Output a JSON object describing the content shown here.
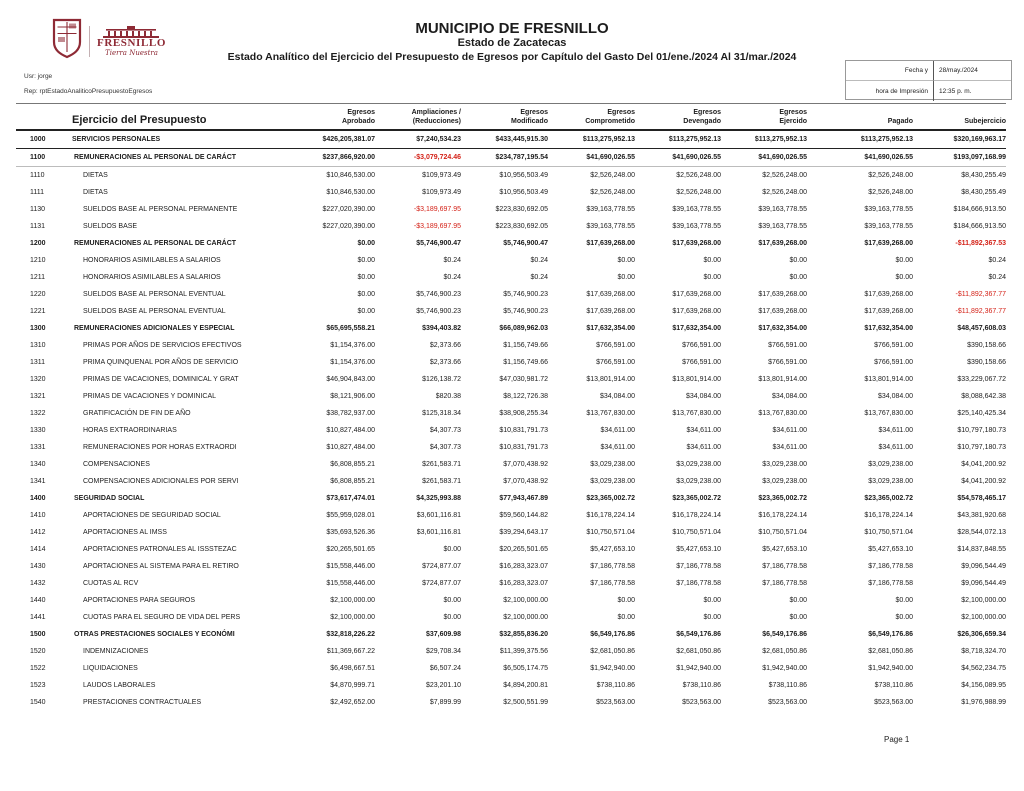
{
  "header": {
    "municipality": "MUNICIPIO DE FRESNILLO",
    "state": "Estado de Zacatecas",
    "report_title": "Estado Analítico del Ejercicio del Presupuesto de Egresos por Capítulo del Gasto Del 01/ene./2024 Al 31/mar./2024",
    "user_label": "Usr: jorge",
    "report_label": "Rep: rptEstadoAnaliticoPresupuestoEgresos",
    "date_label": "Fecha y",
    "time_label": "hora de Impresión",
    "date_value": "28/may./2024",
    "time_value": "12:35 p. m.",
    "logo": {
      "name": "FRESNILLO",
      "slogan": "Tierra Nuestra"
    }
  },
  "colors": {
    "accent_maroon": "#8e2a35",
    "negative_red": "#d42218"
  },
  "table": {
    "title": "Ejercicio del Presupuesto",
    "columns": [
      {
        "id": "aprobado",
        "lines": [
          "Egresos",
          "Aprobado"
        ]
      },
      {
        "id": "ampliaciones",
        "lines": [
          "Ampliaciones /",
          "(Reducciones)"
        ]
      },
      {
        "id": "modificado",
        "lines": [
          "Egresos",
          "Modificado"
        ]
      },
      {
        "id": "comprometido",
        "lines": [
          "Egresos",
          "Comprometido"
        ]
      },
      {
        "id": "devengado",
        "lines": [
          "Egresos",
          "Devengado"
        ]
      },
      {
        "id": "ejercido",
        "lines": [
          "Egresos",
          "Ejercido"
        ]
      },
      {
        "id": "pagado",
        "lines": [
          "Pagado"
        ]
      },
      {
        "id": "subejercicio",
        "lines": [
          "Subejercicio"
        ]
      }
    ],
    "rows": [
      {
        "code": "1000",
        "label": "SERVICIOS PERSONALES",
        "level": 0,
        "bold": true,
        "sep": "dark",
        "values": [
          "$426,205,381.07",
          "$7,240,534.23",
          "$433,445,915.30",
          "$113,275,952.13",
          "$113,275,952.13",
          "$113,275,952.13",
          "$113,275,952.13",
          "$320,169,963.17"
        ]
      },
      {
        "code": "1100",
        "label": "REMUNERACIONES AL PERSONAL DE CARÁCT",
        "level": 1,
        "bold": true,
        "sep": "light",
        "values": [
          "$237,866,920.00",
          "-$3,079,724.46",
          "$234,787,195.54",
          "$41,690,026.55",
          "$41,690,026.55",
          "$41,690,026.55",
          "$41,690,026.55",
          "$193,097,168.99"
        ]
      },
      {
        "code": "1110",
        "label": "DIETAS",
        "level": 2,
        "bold": false,
        "sep": "",
        "values": [
          "$10,846,530.00",
          "$109,973.49",
          "$10,956,503.49",
          "$2,526,248.00",
          "$2,526,248.00",
          "$2,526,248.00",
          "$2,526,248.00",
          "$8,430,255.49"
        ]
      },
      {
        "code": "1111",
        "label": "DIETAS",
        "level": 2,
        "bold": false,
        "sep": "",
        "values": [
          "$10,846,530.00",
          "$109,973.49",
          "$10,956,503.49",
          "$2,526,248.00",
          "$2,526,248.00",
          "$2,526,248.00",
          "$2,526,248.00",
          "$8,430,255.49"
        ]
      },
      {
        "code": "1130",
        "label": "SUELDOS BASE AL PERSONAL PERMANENTE",
        "level": 2,
        "bold": false,
        "sep": "",
        "values": [
          "$227,020,390.00",
          "-$3,189,697.95",
          "$223,830,692.05",
          "$39,163,778.55",
          "$39,163,778.55",
          "$39,163,778.55",
          "$39,163,778.55",
          "$184,666,913.50"
        ]
      },
      {
        "code": "1131",
        "label": "SUELDOS BASE",
        "level": 2,
        "bold": false,
        "sep": "",
        "values": [
          "$227,020,390.00",
          "-$3,189,697.95",
          "$223,830,692.05",
          "$39,163,778.55",
          "$39,163,778.55",
          "$39,163,778.55",
          "$39,163,778.55",
          "$184,666,913.50"
        ]
      },
      {
        "code": "1200",
        "label": "REMUNERACIONES AL PERSONAL DE CARÁCT",
        "level": 1,
        "bold": true,
        "sep": "",
        "values": [
          "$0.00",
          "$5,746,900.47",
          "$5,746,900.47",
          "$17,639,268.00",
          "$17,639,268.00",
          "$17,639,268.00",
          "$17,639,268.00",
          "-$11,892,367.53"
        ]
      },
      {
        "code": "1210",
        "label": "HONORARIOS ASIMILABLES A SALARIOS",
        "level": 2,
        "bold": false,
        "sep": "",
        "values": [
          "$0.00",
          "$0.24",
          "$0.24",
          "$0.00",
          "$0.00",
          "$0.00",
          "$0.00",
          "$0.24"
        ]
      },
      {
        "code": "1211",
        "label": "HONORARIOS ASIMILABLES A SALARIOS",
        "level": 2,
        "bold": false,
        "sep": "",
        "values": [
          "$0.00",
          "$0.24",
          "$0.24",
          "$0.00",
          "$0.00",
          "$0.00",
          "$0.00",
          "$0.24"
        ]
      },
      {
        "code": "1220",
        "label": "SUELDOS BASE AL PERSONAL EVENTUAL",
        "level": 2,
        "bold": false,
        "sep": "",
        "values": [
          "$0.00",
          "$5,746,900.23",
          "$5,746,900.23",
          "$17,639,268.00",
          "$17,639,268.00",
          "$17,639,268.00",
          "$17,639,268.00",
          "-$11,892,367.77"
        ]
      },
      {
        "code": "1221",
        "label": "SUELDOS BASE AL PERSONAL EVENTUAL",
        "level": 2,
        "bold": false,
        "sep": "",
        "values": [
          "$0.00",
          "$5,746,900.23",
          "$5,746,900.23",
          "$17,639,268.00",
          "$17,639,268.00",
          "$17,639,268.00",
          "$17,639,268.00",
          "-$11,892,367.77"
        ]
      },
      {
        "code": "1300",
        "label": "REMUNERACIONES ADICIONALES Y ESPECIAL",
        "level": 1,
        "bold": true,
        "sep": "",
        "values": [
          "$65,695,558.21",
          "$394,403.82",
          "$66,089,962.03",
          "$17,632,354.00",
          "$17,632,354.00",
          "$17,632,354.00",
          "$17,632,354.00",
          "$48,457,608.03"
        ]
      },
      {
        "code": "1310",
        "label": "PRIMAS POR AÑOS DE SERVICIOS EFECTIVOS",
        "level": 2,
        "bold": false,
        "sep": "",
        "values": [
          "$1,154,376.00",
          "$2,373.66",
          "$1,156,749.66",
          "$766,591.00",
          "$766,591.00",
          "$766,591.00",
          "$766,591.00",
          "$390,158.66"
        ]
      },
      {
        "code": "1311",
        "label": "PRIMA QUINQUENAL POR AÑOS DE SERVICIO",
        "level": 2,
        "bold": false,
        "sep": "",
        "values": [
          "$1,154,376.00",
          "$2,373.66",
          "$1,156,749.66",
          "$766,591.00",
          "$766,591.00",
          "$766,591.00",
          "$766,591.00",
          "$390,158.66"
        ]
      },
      {
        "code": "1320",
        "label": "PRIMAS DE VACACIONES, DOMINICAL Y GRAT",
        "level": 2,
        "bold": false,
        "sep": "",
        "values": [
          "$46,904,843.00",
          "$126,138.72",
          "$47,030,981.72",
          "$13,801,914.00",
          "$13,801,914.00",
          "$13,801,914.00",
          "$13,801,914.00",
          "$33,229,067.72"
        ]
      },
      {
        "code": "1321",
        "label": "PRIMAS DE VACACIONES Y DOMINICAL",
        "level": 2,
        "bold": false,
        "sep": "",
        "values": [
          "$8,121,906.00",
          "$820.38",
          "$8,122,726.38",
          "$34,084.00",
          "$34,084.00",
          "$34,084.00",
          "$34,084.00",
          "$8,088,642.38"
        ]
      },
      {
        "code": "1322",
        "label": "GRATIFICACIÓN DE FIN DE AÑO",
        "level": 2,
        "bold": false,
        "sep": "",
        "values": [
          "$38,782,937.00",
          "$125,318.34",
          "$38,908,255.34",
          "$13,767,830.00",
          "$13,767,830.00",
          "$13,767,830.00",
          "$13,767,830.00",
          "$25,140,425.34"
        ]
      },
      {
        "code": "1330",
        "label": "HORAS EXTRAORDINARIAS",
        "level": 2,
        "bold": false,
        "sep": "",
        "values": [
          "$10,827,484.00",
          "$4,307.73",
          "$10,831,791.73",
          "$34,611.00",
          "$34,611.00",
          "$34,611.00",
          "$34,611.00",
          "$10,797,180.73"
        ]
      },
      {
        "code": "1331",
        "label": "REMUNERACIONES POR  HORAS EXTRAORDI",
        "level": 2,
        "bold": false,
        "sep": "",
        "values": [
          "$10,827,484.00",
          "$4,307.73",
          "$10,831,791.73",
          "$34,611.00",
          "$34,611.00",
          "$34,611.00",
          "$34,611.00",
          "$10,797,180.73"
        ]
      },
      {
        "code": "1340",
        "label": "COMPENSACIONES",
        "level": 2,
        "bold": false,
        "sep": "",
        "values": [
          "$6,808,855.21",
          "$261,583.71",
          "$7,070,438.92",
          "$3,029,238.00",
          "$3,029,238.00",
          "$3,029,238.00",
          "$3,029,238.00",
          "$4,041,200.92"
        ]
      },
      {
        "code": "1341",
        "label": "COMPENSACIONES ADICIONALES POR SERVI",
        "level": 2,
        "bold": false,
        "sep": "",
        "values": [
          "$6,808,855.21",
          "$261,583.71",
          "$7,070,438.92",
          "$3,029,238.00",
          "$3,029,238.00",
          "$3,029,238.00",
          "$3,029,238.00",
          "$4,041,200.92"
        ]
      },
      {
        "code": "1400",
        "label": "SEGURIDAD SOCIAL",
        "level": 1,
        "bold": true,
        "sep": "",
        "values": [
          "$73,617,474.01",
          "$4,325,993.88",
          "$77,943,467.89",
          "$23,365,002.72",
          "$23,365,002.72",
          "$23,365,002.72",
          "$23,365,002.72",
          "$54,578,465.17"
        ]
      },
      {
        "code": "1410",
        "label": "APORTACIONES DE SEGURIDAD SOCIAL",
        "level": 2,
        "bold": false,
        "sep": "",
        "values": [
          "$55,959,028.01",
          "$3,601,116.81",
          "$59,560,144.82",
          "$16,178,224.14",
          "$16,178,224.14",
          "$16,178,224.14",
          "$16,178,224.14",
          "$43,381,920.68"
        ]
      },
      {
        "code": "1412",
        "label": "APORTACIONES AL IMSS",
        "level": 2,
        "bold": false,
        "sep": "",
        "values": [
          "$35,693,526.36",
          "$3,601,116.81",
          "$39,294,643.17",
          "$10,750,571.04",
          "$10,750,571.04",
          "$10,750,571.04",
          "$10,750,571.04",
          "$28,544,072.13"
        ]
      },
      {
        "code": "1414",
        "label": "APORTACIONES  PATRONALES AL ISSSTEZAC",
        "level": 2,
        "bold": false,
        "sep": "",
        "values": [
          "$20,265,501.65",
          "$0.00",
          "$20,265,501.65",
          "$5,427,653.10",
          "$5,427,653.10",
          "$5,427,653.10",
          "$5,427,653.10",
          "$14,837,848.55"
        ]
      },
      {
        "code": "1430",
        "label": "APORTACIONES AL SISTEMA PARA EL RETIRO",
        "level": 2,
        "bold": false,
        "sep": "",
        "values": [
          "$15,558,446.00",
          "$724,877.07",
          "$16,283,323.07",
          "$7,186,778.58",
          "$7,186,778.58",
          "$7,186,778.58",
          "$7,186,778.58",
          "$9,096,544.49"
        ]
      },
      {
        "code": "1432",
        "label": "CUOTAS AL RCV",
        "level": 2,
        "bold": false,
        "sep": "",
        "values": [
          "$15,558,446.00",
          "$724,877.07",
          "$16,283,323.07",
          "$7,186,778.58",
          "$7,186,778.58",
          "$7,186,778.58",
          "$7,186,778.58",
          "$9,096,544.49"
        ]
      },
      {
        "code": "1440",
        "label": "APORTACIONES PARA SEGUROS",
        "level": 2,
        "bold": false,
        "sep": "",
        "values": [
          "$2,100,000.00",
          "$0.00",
          "$2,100,000.00",
          "$0.00",
          "$0.00",
          "$0.00",
          "$0.00",
          "$2,100,000.00"
        ]
      },
      {
        "code": "1441",
        "label": "CUOTAS PARA EL SEGURO DE VIDA DEL PERS",
        "level": 2,
        "bold": false,
        "sep": "",
        "values": [
          "$2,100,000.00",
          "$0.00",
          "$2,100,000.00",
          "$0.00",
          "$0.00",
          "$0.00",
          "$0.00",
          "$2,100,000.00"
        ]
      },
      {
        "code": "1500",
        "label": "OTRAS PRESTACIONES SOCIALES Y ECONÓMI",
        "level": 1,
        "bold": true,
        "sep": "",
        "values": [
          "$32,818,226.22",
          "$37,609.98",
          "$32,855,836.20",
          "$6,549,176.86",
          "$6,549,176.86",
          "$6,549,176.86",
          "$6,549,176.86",
          "$26,306,659.34"
        ]
      },
      {
        "code": "1520",
        "label": "INDEMNIZACIONES",
        "level": 2,
        "bold": false,
        "sep": "",
        "values": [
          "$11,369,667.22",
          "$29,708.34",
          "$11,399,375.56",
          "$2,681,050.86",
          "$2,681,050.86",
          "$2,681,050.86",
          "$2,681,050.86",
          "$8,718,324.70"
        ]
      },
      {
        "code": "1522",
        "label": "LIQUIDACIONES",
        "level": 2,
        "bold": false,
        "sep": "",
        "values": [
          "$6,498,667.51",
          "$6,507.24",
          "$6,505,174.75",
          "$1,942,940.00",
          "$1,942,940.00",
          "$1,942,940.00",
          "$1,942,940.00",
          "$4,562,234.75"
        ]
      },
      {
        "code": "1523",
        "label": "LAUDOS LABORALES",
        "level": 2,
        "bold": false,
        "sep": "",
        "values": [
          "$4,870,999.71",
          "$23,201.10",
          "$4,894,200.81",
          "$738,110.86",
          "$738,110.86",
          "$738,110.86",
          "$738,110.86",
          "$4,156,089.95"
        ]
      },
      {
        "code": "1540",
        "label": "PRESTACIONES CONTRACTUALES",
        "level": 2,
        "bold": false,
        "sep": "",
        "values": [
          "$2,492,652.00",
          "$7,899.99",
          "$2,500,551.99",
          "$523,563.00",
          "$523,563.00",
          "$523,563.00",
          "$523,563.00",
          "$1,976,988.99"
        ]
      }
    ]
  },
  "footer": {
    "page": "Page 1"
  }
}
